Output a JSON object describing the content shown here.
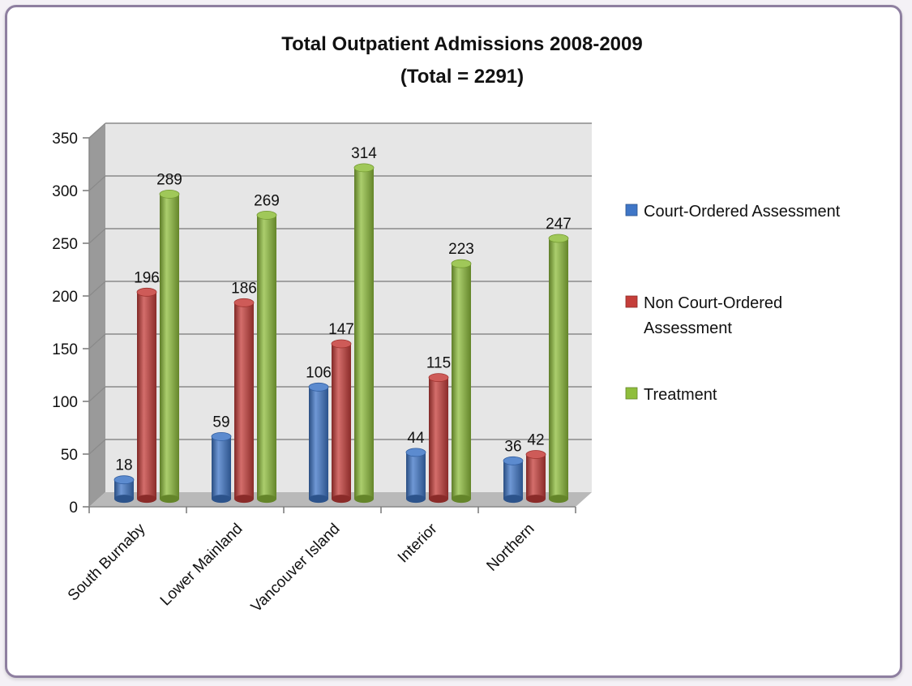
{
  "chart_data": {
    "type": "bar",
    "title": "Total Outpatient Admissions 2008-2009",
    "subtitle": "(Total = 2291)",
    "categories": [
      "South Burnaby",
      "Lower Mainland",
      "Vancouver Island",
      "Interior",
      "Northern"
    ],
    "series": [
      {
        "name": "Court-Ordered Assessment",
        "values": [
          18,
          59,
          106,
          44,
          36
        ],
        "color": "#3f76c7"
      },
      {
        "name": "Non Court-Ordered Assessment",
        "legend_lines": [
          "Non Court-Ordered",
          "Assessment"
        ],
        "values": [
          196,
          186,
          147,
          115,
          42
        ],
        "color": "#c53e3a"
      },
      {
        "name": "Treatment",
        "values": [
          289,
          269,
          314,
          223,
          247
        ],
        "color": "#8fbe3c"
      }
    ],
    "ylim": [
      0,
      350
    ],
    "yticks": [
      0,
      50,
      100,
      150,
      200,
      250,
      300,
      350
    ],
    "grid": true,
    "legend_position": "right",
    "colors": {
      "wall": "#e6e6e6",
      "floor": "#b9b9b9",
      "grid": "#8a8a8a",
      "frame": "#8e7fa0"
    }
  }
}
